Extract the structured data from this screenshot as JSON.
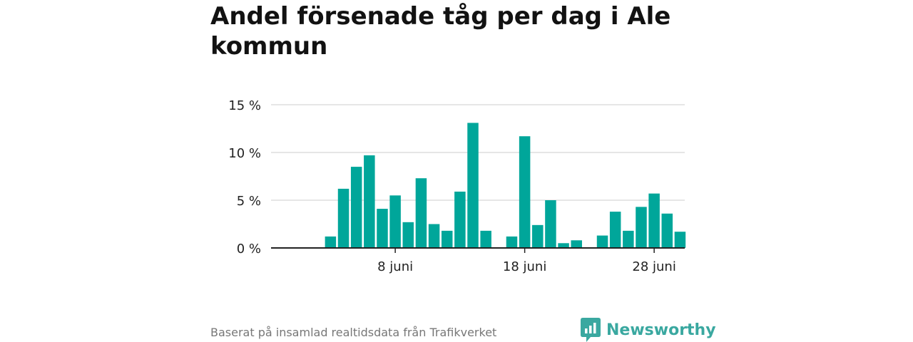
{
  "title": "Andel försenade tåg per dag i Ale kommun",
  "footer": {
    "source": "Baserat på insamlad realtidsdata från Trafikverket"
  },
  "brand": {
    "name": "Newsworthy",
    "icon": "newsworthy-logo-icon"
  },
  "colors": {
    "bar": "#00a69a",
    "grid": "#dddddd",
    "axis": "#222222",
    "brand": "#3aa8a0"
  },
  "chart_data": {
    "type": "bar",
    "title": "Andel försenade tåg per dag i Ale kommun",
    "xlabel": "",
    "ylabel": "",
    "x": [
      "2024-06-01",
      "2024-06-02",
      "2024-06-03",
      "2024-06-04",
      "2024-06-05",
      "2024-06-06",
      "2024-06-07",
      "2024-06-08",
      "2024-06-09",
      "2024-06-10",
      "2024-06-11",
      "2024-06-12",
      "2024-06-13",
      "2024-06-14",
      "2024-06-15",
      "2024-06-16",
      "2024-06-17",
      "2024-06-18",
      "2024-06-19",
      "2024-06-20",
      "2024-06-21",
      "2024-06-22",
      "2024-06-23",
      "2024-06-24",
      "2024-06-25",
      "2024-06-26",
      "2024-06-27",
      "2024-06-28",
      "2024-06-29",
      "2024-06-30"
    ],
    "values": [
      0,
      0,
      1.2,
      6.2,
      8.5,
      9.7,
      4.1,
      5.5,
      2.7,
      7.3,
      2.5,
      1.8,
      5.9,
      13.1,
      1.8,
      null,
      1.2,
      11.7,
      2.4,
      5.0,
      0.5,
      0.8,
      null,
      1.3,
      3.8,
      1.8,
      4.3,
      5.7,
      3.6,
      1.7
    ],
    "ylim": [
      0,
      15
    ],
    "yticks": [
      0,
      5,
      10,
      15
    ],
    "ytick_labels": [
      "0 %",
      "5 %",
      "10 %",
      "15 %"
    ],
    "xticks": [
      "2024-06-08",
      "2024-06-18",
      "2024-06-28"
    ],
    "xtick_labels": [
      "8 juni",
      "18 juni",
      "28 juni"
    ],
    "grid": true,
    "legend": "none"
  }
}
